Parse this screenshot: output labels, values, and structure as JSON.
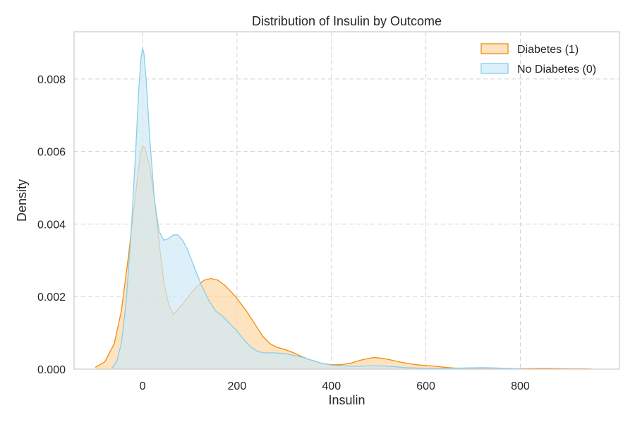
{
  "chart_data": {
    "type": "area",
    "title": "Distribution of Insulin by Outcome",
    "xlabel": "Insulin",
    "ylabel": "Density",
    "xlim": [
      -145,
      1010
    ],
    "ylim": [
      0,
      0.0093
    ],
    "x_ticks": [
      0,
      200,
      400,
      600,
      800
    ],
    "x_tick_labels": [
      "0",
      "200",
      "400",
      "600",
      "800"
    ],
    "y_ticks": [
      0,
      0.002,
      0.004,
      0.006,
      0.008
    ],
    "y_tick_labels": [
      "0.000",
      "0.002",
      "0.004",
      "0.006",
      "0.008"
    ],
    "grid": true,
    "legend": {
      "position": "top-right",
      "entries": [
        "Diabetes (1)",
        "No Diabetes (0)"
      ]
    },
    "series": [
      {
        "name": "Diabetes (1)",
        "stroke": "#f58a0a",
        "fill": "#fdd7a5",
        "fill_opacity": 0.7,
        "points": [
          [
            -100,
            5e-05
          ],
          [
            -80,
            0.0002
          ],
          [
            -60,
            0.0007
          ],
          [
            -45,
            0.0016
          ],
          [
            -30,
            0.0031
          ],
          [
            -15,
            0.0048
          ],
          [
            -5,
            0.0059
          ],
          [
            0,
            0.00615
          ],
          [
            5,
            0.0061
          ],
          [
            15,
            0.0056
          ],
          [
            25,
            0.0047
          ],
          [
            35,
            0.0035
          ],
          [
            45,
            0.0024
          ],
          [
            55,
            0.0018
          ],
          [
            65,
            0.0015
          ],
          [
            75,
            0.00165
          ],
          [
            85,
            0.0018
          ],
          [
            100,
            0.00205
          ],
          [
            115,
            0.00228
          ],
          [
            130,
            0.00245
          ],
          [
            145,
            0.0025
          ],
          [
            160,
            0.00245
          ],
          [
            175,
            0.0023
          ],
          [
            190,
            0.0021
          ],
          [
            200,
            0.00195
          ],
          [
            220,
            0.0016
          ],
          [
            240,
            0.0012
          ],
          [
            255,
            0.0009
          ],
          [
            270,
            0.0007
          ],
          [
            285,
            0.0006
          ],
          [
            300,
            0.00055
          ],
          [
            320,
            0.00045
          ],
          [
            340,
            0.00033
          ],
          [
            360,
            0.00023
          ],
          [
            380,
            0.00016
          ],
          [
            400,
            0.00012
          ],
          [
            420,
            0.00012
          ],
          [
            440,
            0.00016
          ],
          [
            460,
            0.00024
          ],
          [
            480,
            0.0003
          ],
          [
            490,
            0.00032
          ],
          [
            500,
            0.00031
          ],
          [
            520,
            0.00027
          ],
          [
            540,
            0.00021
          ],
          [
            560,
            0.00016
          ],
          [
            580,
            0.00012
          ],
          [
            600,
            0.0001
          ],
          [
            620,
            8e-05
          ],
          [
            640,
            5e-05
          ],
          [
            660,
            3e-05
          ],
          [
            680,
            2e-05
          ],
          [
            720,
            2e-05
          ],
          [
            760,
            2e-05
          ],
          [
            800,
            1e-05
          ],
          [
            850,
            2e-05
          ],
          [
            900,
            1e-05
          ],
          [
            950,
            5e-06
          ]
        ]
      },
      {
        "name": "No Diabetes (0)",
        "stroke": "#87ceeb",
        "fill": "#cfe9f7",
        "fill_opacity": 0.7,
        "points": [
          [
            -65,
            3e-05
          ],
          [
            -55,
            0.0002
          ],
          [
            -45,
            0.0007
          ],
          [
            -35,
            0.0018
          ],
          [
            -25,
            0.0036
          ],
          [
            -15,
            0.0059
          ],
          [
            -8,
            0.0077
          ],
          [
            -3,
            0.0086
          ],
          [
            0,
            0.00885
          ],
          [
            3,
            0.0087
          ],
          [
            8,
            0.0079
          ],
          [
            15,
            0.0064
          ],
          [
            25,
            0.0047
          ],
          [
            35,
            0.0038
          ],
          [
            45,
            0.00355
          ],
          [
            55,
            0.0036
          ],
          [
            65,
            0.0037
          ],
          [
            75,
            0.0037
          ],
          [
            85,
            0.00355
          ],
          [
            95,
            0.0033
          ],
          [
            110,
            0.0028
          ],
          [
            125,
            0.0023
          ],
          [
            140,
            0.0019
          ],
          [
            155,
            0.0016
          ],
          [
            170,
            0.00145
          ],
          [
            185,
            0.00125
          ],
          [
            200,
            0.00105
          ],
          [
            215,
            0.0008
          ],
          [
            230,
            0.0006
          ],
          [
            245,
            0.00048
          ],
          [
            260,
            0.00045
          ],
          [
            275,
            0.00045
          ],
          [
            290,
            0.00044
          ],
          [
            305,
            0.00042
          ],
          [
            320,
            0.00038
          ],
          [
            340,
            0.00032
          ],
          [
            360,
            0.00024
          ],
          [
            380,
            0.00016
          ],
          [
            400,
            0.00011
          ],
          [
            420,
            9e-05
          ],
          [
            440,
            8e-05
          ],
          [
            460,
            8e-05
          ],
          [
            480,
            9e-05
          ],
          [
            500,
            9e-05
          ],
          [
            520,
            8e-05
          ],
          [
            540,
            6e-05
          ],
          [
            560,
            4e-05
          ],
          [
            580,
            3e-05
          ],
          [
            600,
            2e-05
          ],
          [
            640,
            2e-05
          ],
          [
            680,
            3e-05
          ],
          [
            720,
            4e-05
          ],
          [
            750,
            3e-05
          ],
          [
            780,
            2e-05
          ],
          [
            800,
            1e-05
          ]
        ]
      }
    ]
  }
}
